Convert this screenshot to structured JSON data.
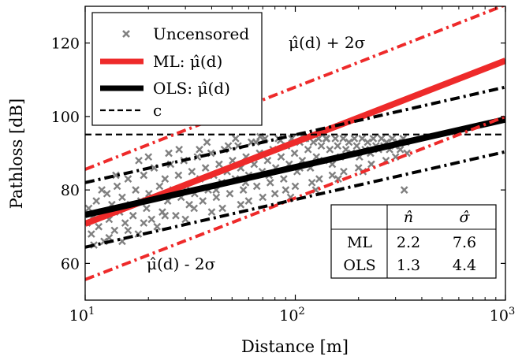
{
  "chart_data": {
    "type": "scatter",
    "title": "",
    "xlabel": "Distance [m]",
    "ylabel": "Pathloss [dB]",
    "xscale": "log",
    "xlim": [
      10,
      1000
    ],
    "ylim": [
      50,
      130
    ],
    "x_ticks": [
      {
        "value": 10,
        "base": "10",
        "exp": "1"
      },
      {
        "value": 100,
        "base": "10",
        "exp": "2"
      },
      {
        "value": 1000,
        "base": "10",
        "exp": "3"
      }
    ],
    "y_ticks": [
      60,
      80,
      100,
      120
    ],
    "grid": false,
    "legend": {
      "position": "top-left",
      "entries": [
        {
          "label": "Uncensored",
          "marker": "x",
          "color": "#808080"
        },
        {
          "label": "ML: μ̂(d)",
          "line": "solid-thick",
          "color": "#ee2a2a"
        },
        {
          "label": "OLS: μ̂(d)",
          "line": "solid-thick",
          "color": "#000000"
        },
        {
          "label": "c",
          "line": "dashed",
          "color": "#000000"
        }
      ]
    },
    "lines": [
      {
        "name": "ML: μ̂(d)",
        "style": "solid",
        "color": "#ee2a2a",
        "x": [
          10,
          1000
        ],
        "y": [
          70.8,
          115.2
        ]
      },
      {
        "name": "OLS: μ̂(d)",
        "style": "solid",
        "color": "#000000",
        "x": [
          10,
          1000
        ],
        "y": [
          73.2,
          99.2
        ]
      },
      {
        "name": "c",
        "style": "dashed",
        "color": "#000000",
        "x": [
          10,
          1000
        ],
        "y": [
          95.1,
          95.1
        ]
      },
      {
        "style": "dashdot",
        "color": "#ee2a2a",
        "x": [
          10,
          1000
        ],
        "y": [
          85.6,
          130.4
        ]
      },
      {
        "style": "dashdot",
        "color": "#ee2a2a",
        "x": [
          10,
          1000
        ],
        "y": [
          55.6,
          100.0
        ]
      },
      {
        "style": "dashdot",
        "color": "#000000",
        "x": [
          10,
          1000
        ],
        "y": [
          82.0,
          108.0
        ]
      },
      {
        "style": "dashdot",
        "color": "#000000",
        "x": [
          10,
          1000
        ],
        "y": [
          64.4,
          90.4
        ]
      }
    ],
    "scatter": {
      "name": "Uncensored",
      "color": "#808080",
      "marker": "x",
      "points": [
        [
          10.2,
          71
        ],
        [
          10.4,
          75
        ],
        [
          10.7,
          68
        ],
        [
          11,
          73
        ],
        [
          11.3,
          77
        ],
        [
          11.6,
          70
        ],
        [
          12,
          74
        ],
        [
          12.3,
          66
        ],
        [
          12.7,
          79
        ],
        [
          13,
          72
        ],
        [
          13.4,
          76
        ],
        [
          13.8,
          69
        ],
        [
          14.2,
          81
        ],
        [
          14.6,
          74
        ],
        [
          15,
          78
        ],
        [
          15.5,
          71
        ],
        [
          16,
          83
        ],
        [
          16.4,
          76
        ],
        [
          16.9,
          73
        ],
        [
          17.4,
          80
        ],
        [
          17.9,
          68
        ],
        [
          18.4,
          77
        ],
        [
          19,
          84
        ],
        [
          19.6,
          75
        ],
        [
          20.1,
          79
        ],
        [
          20.7,
          72
        ],
        [
          21.3,
          86
        ],
        [
          22,
          78
        ],
        [
          22.6,
          81
        ],
        [
          23.3,
          74
        ],
        [
          24,
          83
        ],
        [
          24.7,
          77
        ],
        [
          25.5,
          87
        ],
        [
          26.2,
          80
        ],
        [
          27,
          73
        ],
        [
          27.8,
          84
        ],
        [
          28.6,
          78
        ],
        [
          29.5,
          88
        ],
        [
          30.4,
          81
        ],
        [
          31.3,
          76
        ],
        [
          32.2,
          85
        ],
        [
          33.2,
          79
        ],
        [
          34.2,
          89
        ],
        [
          35.2,
          83
        ],
        [
          36.3,
          77
        ],
        [
          37.4,
          86
        ],
        [
          38.5,
          80
        ],
        [
          39.7,
          90
        ],
        [
          40.9,
          84
        ],
        [
          42.1,
          78
        ],
        [
          43.4,
          87
        ],
        [
          44.7,
          82
        ],
        [
          46,
          91
        ],
        [
          47.4,
          85
        ],
        [
          48.8,
          79
        ],
        [
          50.3,
          88
        ],
        [
          51.8,
          83
        ],
        [
          53.4,
          92
        ],
        [
          55,
          86
        ],
        [
          56.6,
          80
        ],
        [
          58.3,
          89
        ],
        [
          60,
          84
        ],
        [
          61.8,
          93
        ],
        [
          63.7,
          87
        ],
        [
          65.6,
          81
        ],
        [
          67.6,
          90
        ],
        [
          69.6,
          85
        ],
        [
          71.7,
          94
        ],
        [
          73.8,
          88
        ],
        [
          76,
          82
        ],
        [
          78.3,
          91
        ],
        [
          80.7,
          86
        ],
        [
          83.1,
          94
        ],
        [
          85.6,
          89
        ],
        [
          88.1,
          83
        ],
        [
          90.8,
          92
        ],
        [
          93.5,
          87
        ],
        [
          96.3,
          94
        ],
        [
          99.2,
          90
        ],
        [
          102,
          85
        ],
        [
          105,
          93
        ],
        [
          108,
          88
        ],
        [
          112,
          94
        ],
        [
          115,
          91
        ],
        [
          118,
          86
        ],
        [
          122,
          93
        ],
        [
          126,
          89
        ],
        [
          129,
          94
        ],
        [
          133,
          92
        ],
        [
          137,
          88
        ],
        [
          141,
          94
        ],
        [
          146,
          91
        ],
        [
          150,
          87
        ],
        [
          155,
          94
        ],
        [
          159,
          92
        ],
        [
          164,
          89
        ],
        [
          169,
          94
        ],
        [
          174,
          91
        ],
        [
          180,
          93
        ],
        [
          185,
          90
        ],
        [
          191,
          94
        ],
        [
          196,
          92
        ],
        [
          202,
          89
        ],
        [
          208,
          94
        ],
        [
          215,
          91
        ],
        [
          221,
          93
        ],
        [
          228,
          90
        ],
        [
          235,
          94
        ],
        [
          242,
          92
        ],
        [
          249,
          91
        ],
        [
          257,
          94
        ],
        [
          264,
          92
        ],
        [
          272,
          93
        ],
        [
          281,
          91
        ],
        [
          289,
          94
        ],
        [
          298,
          92
        ],
        [
          307,
          93
        ],
        [
          316,
          91
        ],
        [
          326,
          94
        ],
        [
          336,
          93
        ],
        [
          15,
          66
        ],
        [
          22,
          70
        ],
        [
          30,
          72
        ],
        [
          40,
          74
        ],
        [
          55,
          76
        ],
        [
          70,
          78
        ],
        [
          90,
          80
        ],
        [
          120,
          82
        ],
        [
          150,
          84
        ],
        [
          200,
          86
        ],
        [
          18,
          88
        ],
        [
          25,
          90
        ],
        [
          35,
          91
        ],
        [
          48,
          92
        ],
        [
          65,
          93
        ],
        [
          85,
          93.5
        ],
        [
          110,
          94
        ],
        [
          140,
          94
        ],
        [
          45,
          75
        ],
        [
          60,
          77
        ],
        [
          80,
          79
        ],
        [
          100,
          81
        ],
        [
          130,
          83
        ],
        [
          170,
          85
        ],
        [
          230,
          87
        ],
        [
          300,
          89
        ],
        [
          12,
          80
        ],
        [
          14,
          84
        ],
        [
          20,
          89
        ],
        [
          28,
          91
        ],
        [
          38,
          93
        ],
        [
          52,
          94
        ],
        [
          68,
          94.5
        ],
        [
          95,
          78
        ],
        [
          125,
          80
        ],
        [
          160,
          83
        ],
        [
          210,
          85
        ],
        [
          270,
          88
        ],
        [
          340,
          90
        ],
        [
          330,
          80
        ],
        [
          11,
          65
        ],
        [
          13,
          67
        ],
        [
          16,
          69
        ],
        [
          19,
          71
        ],
        [
          24,
          73
        ],
        [
          33,
          75
        ],
        [
          42,
          80
        ],
        [
          58,
          82
        ],
        [
          75,
          84
        ],
        [
          105,
          86
        ]
      ]
    },
    "annotations": [
      {
        "text": "μ̂(d) + 2σ",
        "position": "upper-right"
      },
      {
        "text": "μ̂(d) - 2σ",
        "position": "lower-left"
      }
    ],
    "table": {
      "headers": [
        "",
        "n̂",
        "σ̂"
      ],
      "rows": [
        [
          "ML",
          "2.2",
          "7.6"
        ],
        [
          "OLS",
          "1.3",
          "4.4"
        ]
      ]
    }
  }
}
